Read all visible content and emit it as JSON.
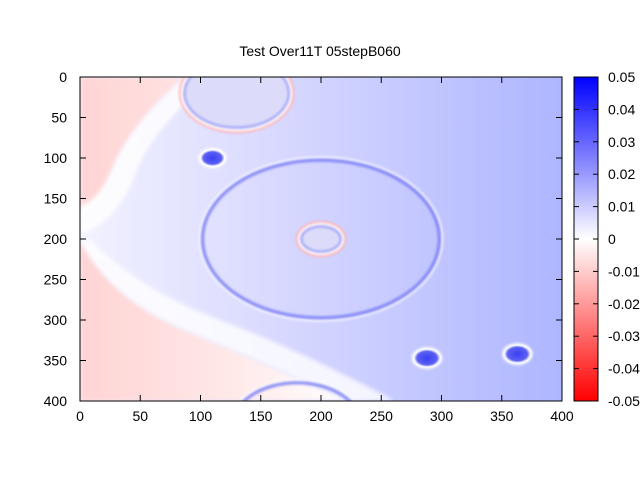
{
  "chart_data": {
    "type": "heatmap",
    "title": "Test Over11T 05stepB060",
    "xlabel": "",
    "ylabel": "",
    "xlim": [
      0,
      400
    ],
    "ylim": [
      0,
      400
    ],
    "y_axis_inverted": true,
    "x_ticks": [
      "0",
      "50",
      "100",
      "150",
      "200",
      "250",
      "300",
      "350",
      "400"
    ],
    "y_ticks": [
      "0",
      "50",
      "100",
      "150",
      "200",
      "250",
      "300",
      "350",
      "400"
    ],
    "colorbar": {
      "min": -0.05,
      "max": 0.05,
      "colormap": [
        "#ff0000",
        "#ffffff",
        "#0000ff"
      ],
      "tick_values": [
        0.05,
        0.04,
        0.03,
        0.02,
        0.01,
        0,
        -0.01,
        -0.02,
        -0.03,
        -0.04,
        -0.05
      ],
      "tick_labels": [
        "0.05",
        "0.04",
        "0.03",
        "0.02",
        "0.01",
        "0",
        "-0.01",
        "-0.02",
        "-0.03",
        "-0.04",
        "-0.05"
      ]
    },
    "grid": false,
    "features": [
      {
        "shape": "ring",
        "cx": 200,
        "cy": 200,
        "r": 100
      },
      {
        "shape": "ring",
        "cx": 200,
        "cy": 200,
        "r": 18
      },
      {
        "shape": "dot",
        "cx": 110,
        "cy": 100,
        "r": 10
      },
      {
        "shape": "dot",
        "cx": 288,
        "cy": 347,
        "r": 11
      },
      {
        "shape": "dot",
        "cx": 363,
        "cy": 342,
        "r": 11
      },
      {
        "shape": "ring",
        "cx": 130,
        "cy": 20,
        "r": 45
      },
      {
        "shape": "ring",
        "cx": 180,
        "cy": 430,
        "r": 55
      }
    ]
  }
}
